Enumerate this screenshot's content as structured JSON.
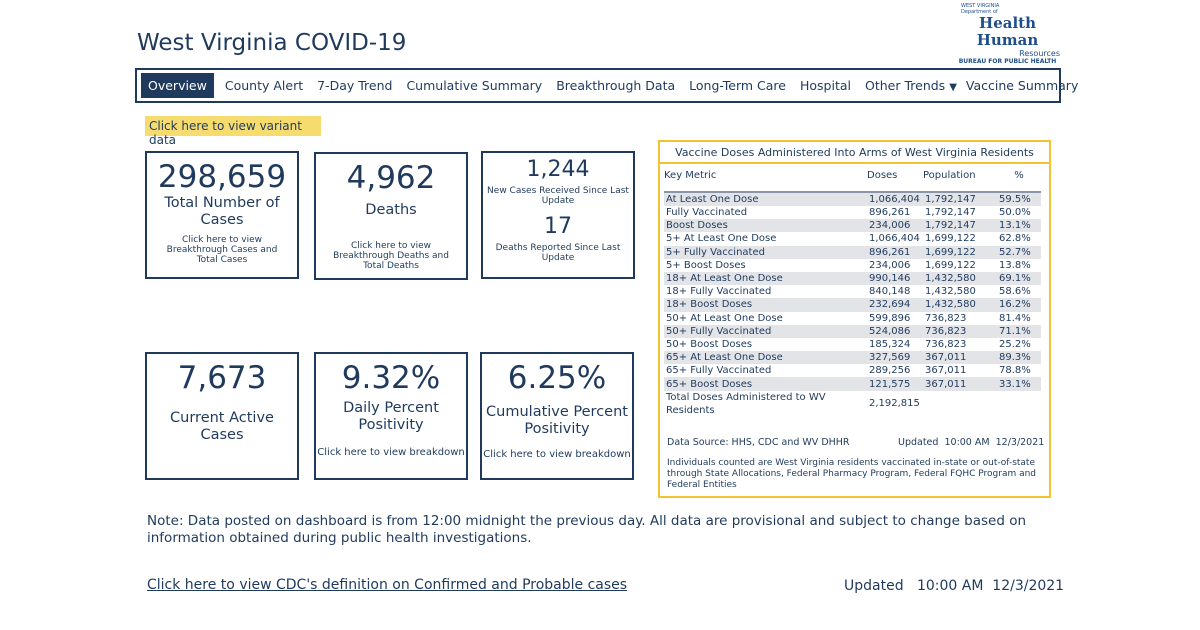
{
  "header": {
    "title": "West Virginia COVID-19",
    "logo": {
      "line1": "WEST VIRGINIA",
      "line2": "Department of",
      "line3": "Health",
      "line4": "Human",
      "line5": "Resources",
      "line6": "BUREAU FOR PUBLIC HEALTH"
    }
  },
  "nav": {
    "tabs": [
      "Overview",
      "County Alert",
      "7-Day Trend",
      "Cumulative Summary",
      "Breakthrough Data",
      "Long-Term Care",
      "Hospital",
      "Other Trends",
      "Vaccine Summary"
    ]
  },
  "variant_link": "Click here to view variant data",
  "cards": {
    "total": {
      "value": "298,659",
      "label": "Total Number of Cases",
      "link": "Click here to view Breakthrough Cases and Total Cases"
    },
    "deaths": {
      "value": "4,962",
      "label": "Deaths",
      "link": "Click here to view Breakthrough Deaths and Total Deaths"
    },
    "new": {
      "value": "1,244",
      "label": "New Cases Received Since Last Update",
      "value2": "17",
      "label2": "Deaths Reported Since Last Update"
    },
    "active": {
      "value": "7,673",
      "label": "Current Active Cases"
    },
    "daily": {
      "value": "9.32%",
      "label": "Daily Percent Positivity",
      "link": "Click here to view breakdown"
    },
    "cumulative": {
      "value": "6.25%",
      "label": "Cumulative Percent Positivity",
      "link": "Click here to view breakdown"
    }
  },
  "vaccine": {
    "title": "Vaccine Doses Administered Into Arms of West Virginia Residents",
    "columns": [
      "Key Metric",
      "Doses",
      "Population",
      "%"
    ],
    "rows": [
      [
        "At Least One Dose",
        "1,066,404",
        "1,792,147",
        "59.5%"
      ],
      [
        "Fully Vaccinated",
        "896,261",
        "1,792,147",
        "50.0%"
      ],
      [
        "Boost Doses",
        "234,006",
        "1,792,147",
        "13.1%"
      ],
      [
        "5+ At Least One Dose",
        "1,066,404",
        "1,699,122",
        "62.8%"
      ],
      [
        "5+ Fully Vaccinated",
        "896,261",
        "1,699,122",
        "52.7%"
      ],
      [
        "5+ Boost Doses",
        "234,006",
        "1,699,122",
        "13.8%"
      ],
      [
        "18+ At Least One Dose",
        "990,146",
        "1,432,580",
        "69.1%"
      ],
      [
        "18+ Fully Vaccinated",
        "840,148",
        "1,432,580",
        "58.6%"
      ],
      [
        "18+ Boost Doses",
        "232,694",
        "1,432,580",
        "16.2%"
      ],
      [
        "50+ At Least One Dose",
        "599,896",
        "736,823",
        "81.4%"
      ],
      [
        "50+ Fully Vaccinated",
        "524,086",
        "736,823",
        "71.1%"
      ],
      [
        "50+ Boost Doses",
        "185,324",
        "736,823",
        "25.2%"
      ],
      [
        "65+ At Least One Dose",
        "327,569",
        "367,011",
        "89.3%"
      ],
      [
        "65+ Fully Vaccinated",
        "289,256",
        "367,011",
        "78.8%"
      ],
      [
        "65+ Boost Doses",
        "121,575",
        "367,011",
        "33.1%"
      ]
    ],
    "total_label": "Total Doses Administered to WV Residents",
    "total_value": "2,192,815",
    "source": "Data Source: HHS, CDC and WV DHHR",
    "updated": "Updated  10:00 AM  12/3/2021",
    "footnote": "Individuals counted are West Virginia residents vaccinated in-state or out-of-state through State Allocations, Federal Pharmacy Program, Federal FQHC Program and Federal Entities"
  },
  "note": "Note: Data posted on dashboard is from 12:00 midnight the previous day. All data are provisional and subject to change based on information obtained during public health investigations.",
  "cdc_link": "Click here to view CDC's definition on Confirmed and Probable cases",
  "updated": "Updated   10:00 AM  12/3/2021"
}
